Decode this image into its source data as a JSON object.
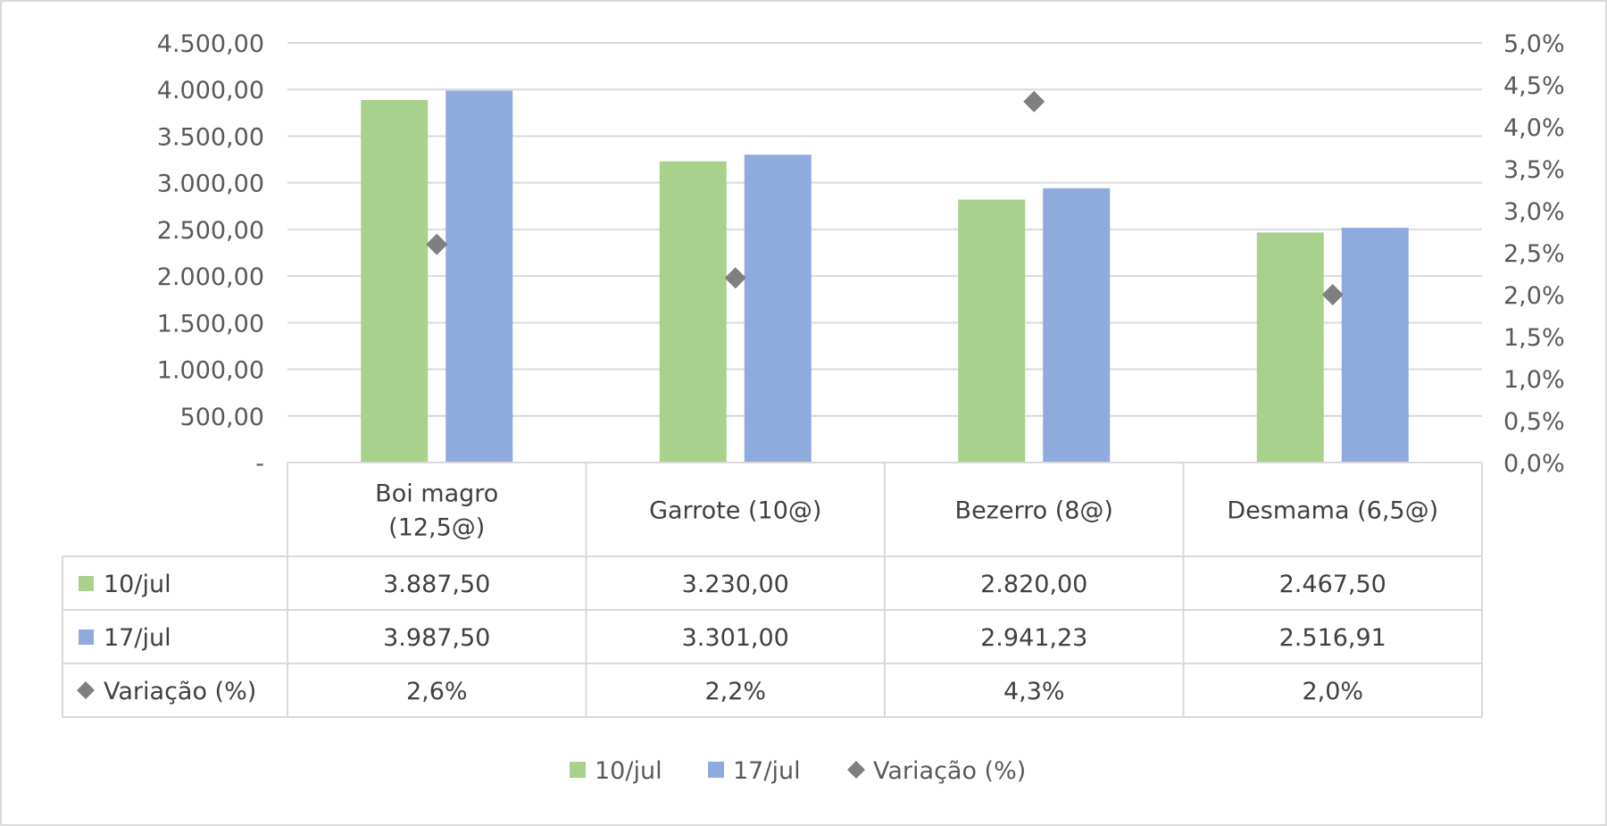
{
  "chart_data": {
    "type": "bar",
    "categories": [
      [
        "Boi magro",
        "(12,5@)"
      ],
      [
        "Garrote (10@)"
      ],
      [
        "Bezerro (8@)"
      ],
      [
        "Desmama (6,5@)"
      ]
    ],
    "series": [
      {
        "name": "10/jul",
        "type": "bar",
        "axis": "left",
        "color": "#a9d18e",
        "values": [
          3887.5,
          3230.0,
          2820.0,
          2467.5
        ],
        "labels": [
          "3.887,50",
          "3.230,00",
          "2.820,00",
          "2.467,50"
        ]
      },
      {
        "name": "17/jul",
        "type": "bar",
        "axis": "left",
        "color": "#8faadc",
        "values": [
          3987.5,
          3301.0,
          2941.23,
          2516.91
        ],
        "labels": [
          "3.987,50",
          "3.301,00",
          "2.941,23",
          "2.516,91"
        ]
      },
      {
        "name": "Variação (%)",
        "type": "scatter",
        "marker": "diamond",
        "axis": "right",
        "color": "#7f7f7f",
        "values": [
          2.6,
          2.2,
          4.3,
          2.0
        ],
        "labels": [
          "2,6%",
          "2,2%",
          "4,3%",
          "2,0%"
        ]
      }
    ],
    "y_left": {
      "ylim": [
        0,
        4500
      ],
      "ticks": [
        0,
        500,
        1000,
        1500,
        2000,
        2500,
        3000,
        3500,
        4000,
        4500
      ],
      "tick_labels": [
        "-",
        "500,00",
        "1.000,00",
        "1.500,00",
        "2.000,00",
        "2.500,00",
        "3.000,00",
        "3.500,00",
        "4.000,00",
        "4.500,00"
      ]
    },
    "y_right": {
      "ylim": [
        0,
        5
      ],
      "ticks": [
        0,
        0.5,
        1,
        1.5,
        2,
        2.5,
        3,
        3.5,
        4,
        4.5,
        5
      ],
      "tick_labels": [
        "0,0%",
        "0,5%",
        "1,0%",
        "1,5%",
        "2,0%",
        "2,5%",
        "3,0%",
        "3,5%",
        "4,0%",
        "4,5%",
        "5,0%"
      ]
    },
    "grid": true,
    "data_table": true,
    "legend_placement": "bottom"
  }
}
